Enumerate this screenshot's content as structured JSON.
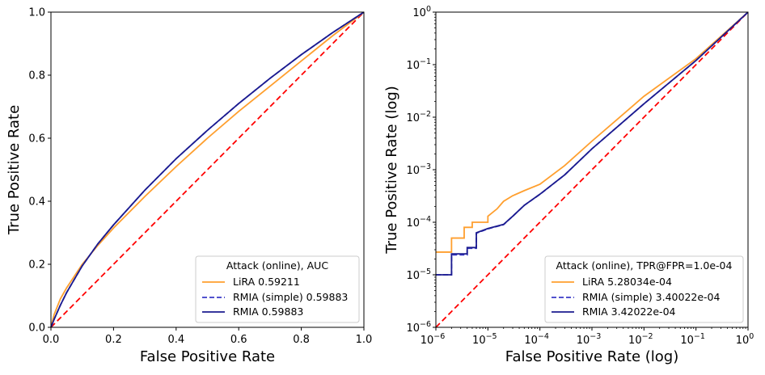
{
  "chart_data": [
    {
      "type": "line",
      "title": "",
      "xlabel": "False Positive Rate",
      "ylabel": "True Positive Rate",
      "xscale": "linear",
      "yscale": "linear",
      "xlim": [
        0.0,
        1.0
      ],
      "ylim": [
        0.0,
        1.0
      ],
      "xticks": [
        "0.0",
        "0.2",
        "0.4",
        "0.6",
        "0.8",
        "1.0"
      ],
      "yticks": [
        "0.0",
        "0.2",
        "0.4",
        "0.6",
        "0.8",
        "1.0"
      ],
      "legend": {
        "title": "Attack (online), AUC",
        "location": "lower-right",
        "entries": [
          "LiRA 0.59211",
          "RMIA (simple) 0.59883",
          "RMIA 0.59883"
        ]
      },
      "series": [
        {
          "name": "LiRA",
          "color": "#ff9f2e",
          "style": "solid",
          "x": [
            0,
            0.01,
            0.03,
            0.05,
            0.1,
            0.15,
            0.2,
            0.3,
            0.4,
            0.5,
            0.6,
            0.7,
            0.8,
            0.9,
            1.0
          ],
          "y": [
            0,
            0.04,
            0.09,
            0.125,
            0.2,
            0.26,
            0.315,
            0.415,
            0.51,
            0.6,
            0.685,
            0.765,
            0.845,
            0.925,
            1.0
          ]
        },
        {
          "name": "RMIA (simple)",
          "color": "#3a3ac8",
          "style": "dashed",
          "x": [
            0,
            0.01,
            0.03,
            0.05,
            0.1,
            0.15,
            0.2,
            0.3,
            0.4,
            0.5,
            0.6,
            0.7,
            0.8,
            0.9,
            1.0
          ],
          "y": [
            0,
            0.025,
            0.07,
            0.11,
            0.195,
            0.265,
            0.325,
            0.435,
            0.535,
            0.625,
            0.71,
            0.79,
            0.865,
            0.935,
            1.0
          ]
        },
        {
          "name": "RMIA",
          "color": "#1b1b8f",
          "style": "solid",
          "x": [
            0,
            0.01,
            0.03,
            0.05,
            0.1,
            0.15,
            0.2,
            0.3,
            0.4,
            0.5,
            0.6,
            0.7,
            0.8,
            0.9,
            1.0
          ],
          "y": [
            0,
            0.025,
            0.07,
            0.11,
            0.195,
            0.265,
            0.325,
            0.435,
            0.535,
            0.625,
            0.71,
            0.79,
            0.865,
            0.935,
            1.0
          ]
        },
        {
          "name": "chance",
          "color": "#ff0000",
          "style": "dashed",
          "x": [
            0,
            1
          ],
          "y": [
            0,
            1
          ]
        }
      ]
    },
    {
      "type": "line",
      "title": "",
      "xlabel": "False Positive Rate (log)",
      "ylabel": "True Positive Rate (log)",
      "xscale": "log",
      "yscale": "log",
      "xlim": [
        1e-06,
        1
      ],
      "ylim": [
        1e-06,
        1
      ],
      "xtick_exponents": [
        "−6",
        "−5",
        "−4",
        "−3",
        "−2",
        "−1",
        "0"
      ],
      "ytick_exponents": [
        "−6",
        "−5",
        "−4",
        "−3",
        "−2",
        "−1",
        "0"
      ],
      "tick_base": "10",
      "legend": {
        "title": "Attack (online), TPR@FPR=1.0e-04",
        "location": "lower-right",
        "entries": [
          "LiRA 5.28034e-04",
          "RMIA (simple) 3.40022e-04",
          "RMIA 3.42022e-04"
        ]
      },
      "series": [
        {
          "name": "LiRA",
          "color": "#ff9f2e",
          "style": "solid",
          "x": [
            1e-06,
            2e-06,
            2e-06,
            3.5e-06,
            3.5e-06,
            5e-06,
            5e-06,
            1e-05,
            1e-05,
            1.5e-05,
            2e-05,
            3e-05,
            5e-05,
            0.0001,
            0.0003,
            0.001,
            0.01,
            0.1,
            1
          ],
          "y": [
            2.7e-05,
            2.7e-05,
            5e-05,
            5e-05,
            8e-05,
            8e-05,
            0.0001,
            0.0001,
            0.00013,
            0.00018,
            0.00025,
            0.00032,
            0.0004,
            0.00053,
            0.0012,
            0.0035,
            0.025,
            0.13,
            1
          ]
        },
        {
          "name": "RMIA (simple)",
          "color": "#3a3ac8",
          "style": "dashed",
          "x": [
            1e-06,
            2e-06,
            2e-06,
            4e-06,
            4e-06,
            6e-06,
            6e-06,
            1e-05,
            2e-05,
            3e-05,
            5e-05,
            0.0001,
            0.0003,
            0.001,
            0.01,
            0.1,
            1
          ],
          "y": [
            1e-05,
            1e-05,
            2.4e-05,
            2.4e-05,
            3.2e-05,
            3.2e-05,
            6.2e-05,
            7.5e-05,
            9e-05,
            0.00013,
            0.00021,
            0.00034,
            0.0008,
            0.0025,
            0.018,
            0.12,
            1
          ]
        },
        {
          "name": "RMIA",
          "color": "#1b1b8f",
          "style": "solid",
          "x": [
            1e-06,
            2e-06,
            2e-06,
            4e-06,
            4e-06,
            6e-06,
            6e-06,
            1e-05,
            2e-05,
            3e-05,
            5e-05,
            0.0001,
            0.0003,
            0.001,
            0.01,
            0.1,
            1
          ],
          "y": [
            1e-05,
            1e-05,
            2.5e-05,
            2.5e-05,
            3.3e-05,
            3.3e-05,
            6.3e-05,
            7.6e-05,
            9.1e-05,
            0.00013,
            0.00021,
            0.000342,
            0.0008,
            0.0025,
            0.018,
            0.12,
            1
          ]
        },
        {
          "name": "chance",
          "color": "#ff0000",
          "style": "dashed",
          "x": [
            1e-06,
            1
          ],
          "y": [
            1e-06,
            1
          ]
        }
      ]
    }
  ]
}
